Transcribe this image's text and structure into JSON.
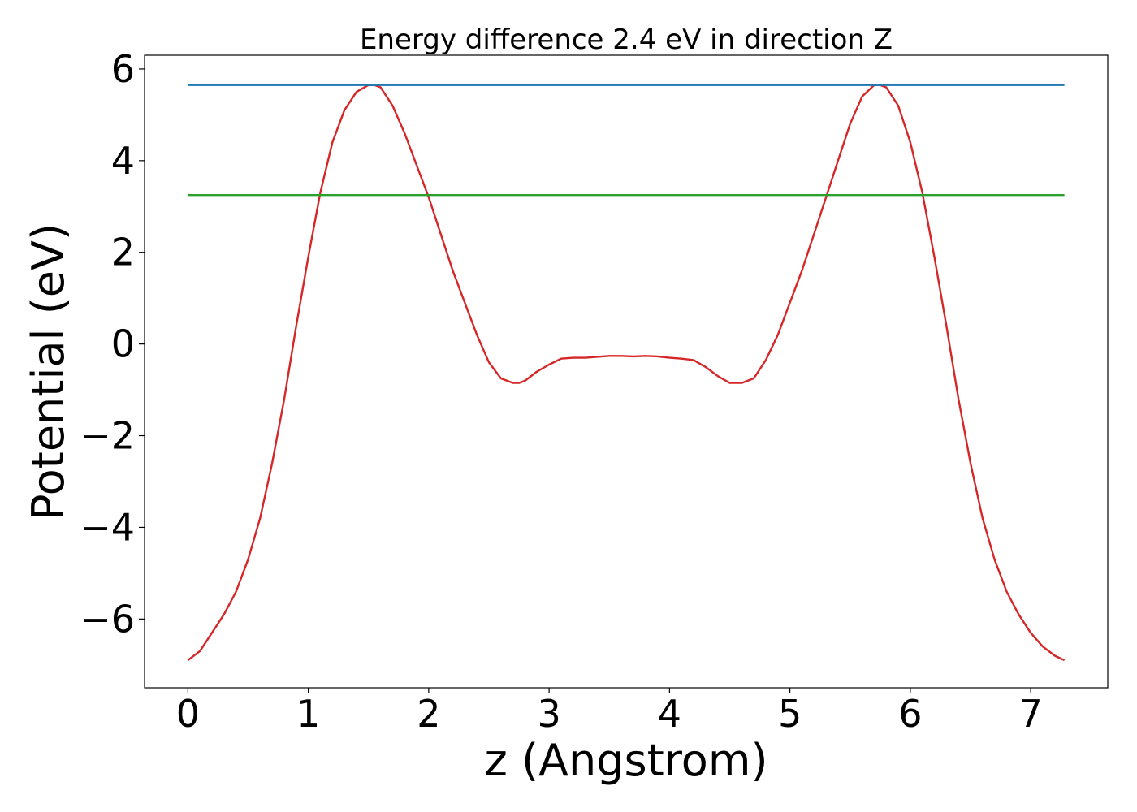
{
  "chart_data": {
    "type": "line",
    "title": "Energy difference 2.4 eV in direction Z",
    "xlabel": "z (Angstrom)",
    "ylabel": "Potential (eV)",
    "xlim": [
      -0.36,
      7.64
    ],
    "ylim": [
      -7.5,
      6.3
    ],
    "xticks": [
      0,
      1,
      2,
      3,
      4,
      5,
      6,
      7
    ],
    "xtick_labels": [
      "0",
      "1",
      "2",
      "3",
      "4",
      "5",
      "6",
      "7"
    ],
    "yticks": [
      -6,
      -4,
      -2,
      0,
      2,
      4,
      6
    ],
    "ytick_labels": [
      "−6",
      "−4",
      "−2",
      "0",
      "2",
      "4",
      "6"
    ],
    "grid": false,
    "legend": "none",
    "series": [
      {
        "color": "#d62728",
        "x": [
          0.0,
          0.1,
          0.2,
          0.3,
          0.4,
          0.5,
          0.6,
          0.7,
          0.8,
          0.9,
          1.0,
          1.1,
          1.2,
          1.3,
          1.4,
          1.5,
          1.55,
          1.6,
          1.7,
          1.8,
          1.9,
          2.0,
          2.1,
          2.2,
          2.3,
          2.4,
          2.5,
          2.6,
          2.7,
          2.75,
          2.8,
          2.9,
          3.0,
          3.1,
          3.2,
          3.3,
          3.4,
          3.5,
          3.6,
          3.7,
          3.8,
          3.9,
          4.0,
          4.1,
          4.2,
          4.3,
          4.4,
          4.5,
          4.55,
          4.6,
          4.7,
          4.8,
          4.9,
          5.0,
          5.1,
          5.2,
          5.3,
          5.4,
          5.5,
          5.6,
          5.7,
          5.75,
          5.8,
          5.9,
          6.0,
          6.1,
          6.2,
          6.3,
          6.4,
          6.5,
          6.6,
          6.7,
          6.8,
          6.9,
          7.0,
          7.1,
          7.2,
          7.28
        ],
        "y": [
          -6.9,
          -6.7,
          -6.3,
          -5.9,
          -5.4,
          -4.7,
          -3.8,
          -2.6,
          -1.2,
          0.4,
          1.9,
          3.3,
          4.4,
          5.1,
          5.5,
          5.65,
          5.65,
          5.6,
          5.2,
          4.6,
          3.9,
          3.2,
          2.4,
          1.6,
          0.9,
          0.2,
          -0.4,
          -0.75,
          -0.85,
          -0.85,
          -0.8,
          -0.6,
          -0.45,
          -0.32,
          -0.3,
          -0.3,
          -0.28,
          -0.26,
          -0.26,
          -0.27,
          -0.26,
          -0.27,
          -0.3,
          -0.32,
          -0.35,
          -0.5,
          -0.7,
          -0.85,
          -0.85,
          -0.85,
          -0.75,
          -0.35,
          0.2,
          0.9,
          1.6,
          2.4,
          3.2,
          4.0,
          4.8,
          5.4,
          5.65,
          5.65,
          5.6,
          5.2,
          4.4,
          3.3,
          1.9,
          0.4,
          -1.2,
          -2.6,
          -3.8,
          -4.7,
          -5.4,
          -5.9,
          -6.3,
          -6.6,
          -6.8,
          -6.9
        ]
      },
      {
        "color": "#1f77b4",
        "x": [
          0.0,
          7.28
        ],
        "y": [
          5.65,
          5.65
        ]
      },
      {
        "color": "#2ca02c",
        "x": [
          0.0,
          7.28
        ],
        "y": [
          3.25,
          3.25
        ]
      }
    ]
  }
}
